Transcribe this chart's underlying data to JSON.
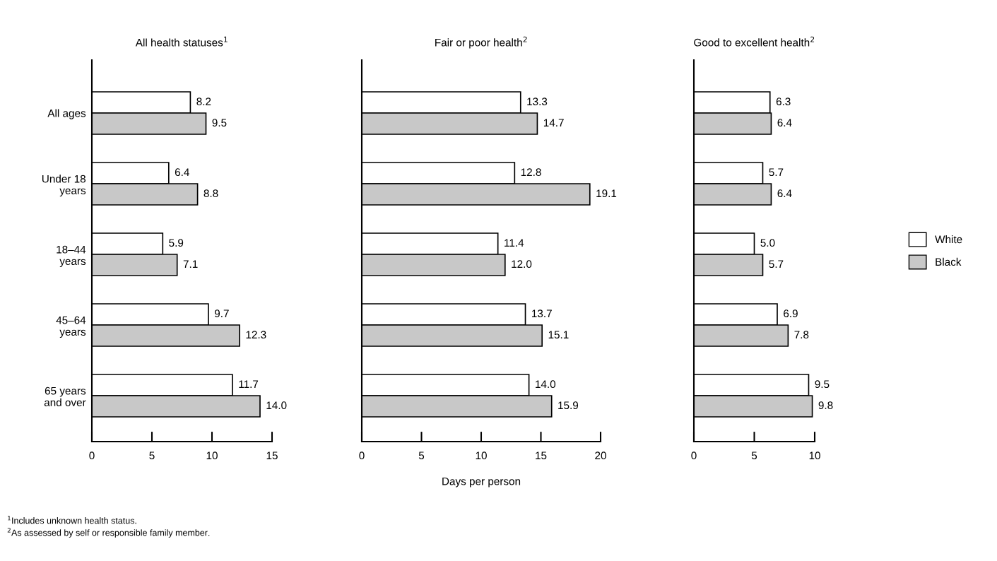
{
  "chart_data": [
    {
      "type": "bar",
      "orientation": "horizontal",
      "title": "All health statuses$^{1}$",
      "categories": [
        "All ages",
        "Under 18\nyears",
        "18–44\nyears",
        "45–64\nyears",
        "65 years\nand over"
      ],
      "series": [
        {
          "color": "#ffffff",
          "values": [
            8.2,
            6.4,
            5.9,
            9.7,
            11.7
          ],
          "value_labels": [
            "8.2",
            "6.4",
            "5.9",
            "9.7",
            "11.7"
          ]
        },
        {
          "color": "#c8c8c8",
          "values": [
            9.5,
            8.8,
            7.1,
            12.3,
            14.0
          ],
          "value_labels": [
            "9.5",
            "8.8",
            "7.1",
            "12.3",
            "14.0"
          ]
        }
      ],
      "xlim": [
        0,
        15
      ],
      "xticks": [
        0,
        5,
        10,
        15
      ],
      "grid": false,
      "annotations": [
        "$^{1}$Includes unknown health status.",
        "$^{2}$As assessed by self or responsible family member."
      ]
    },
    {
      "type": "bar",
      "orientation": "horizontal",
      "title": "Fair or poor health$^{2}$",
      "xlabel": "Days per person",
      "categories": [
        null,
        null,
        null,
        null,
        null
      ],
      "series": [
        {
          "color": "#ffffff",
          "values": [
            13.3,
            12.8,
            11.4,
            13.7,
            14.0
          ],
          "value_labels": [
            "13.3",
            "12.8",
            "11.4",
            "13.7",
            "14.0"
          ]
        },
        {
          "color": "#c8c8c8",
          "values": [
            14.7,
            19.1,
            12.0,
            15.1,
            15.9
          ],
          "value_labels": [
            "14.7",
            "19.1",
            "12.0",
            "15.1",
            "15.9"
          ]
        }
      ],
      "xlim": [
        0,
        20
      ],
      "xticks": [
        0,
        5,
        10,
        15,
        20
      ],
      "grid": false,
      "tick_labels": "x"
    },
    {
      "type": "bar",
      "orientation": "horizontal",
      "title": "Good to excellent health$^{2}$",
      "categories": [
        null,
        null,
        null,
        null,
        null
      ],
      "series": [
        {
          "name": "White",
          "color": "#ffffff",
          "values": [
            6.3,
            5.7,
            5.0,
            6.9,
            9.5
          ],
          "value_labels": [
            "6.3",
            "5.7",
            "5.0",
            "6.9",
            "9.5"
          ]
        },
        {
          "name": "Black",
          "color": "#c8c8c8",
          "values": [
            6.4,
            6.4,
            5.7,
            7.8,
            9.8
          ],
          "value_labels": [
            "6.4",
            "6.4",
            "5.7",
            "7.8",
            "9.8"
          ]
        }
      ],
      "xlim": [
        0,
        10
      ],
      "xticks": [
        0,
        5,
        10
      ],
      "grid": false,
      "tick_labels": "x",
      "legend": "right"
    }
  ]
}
